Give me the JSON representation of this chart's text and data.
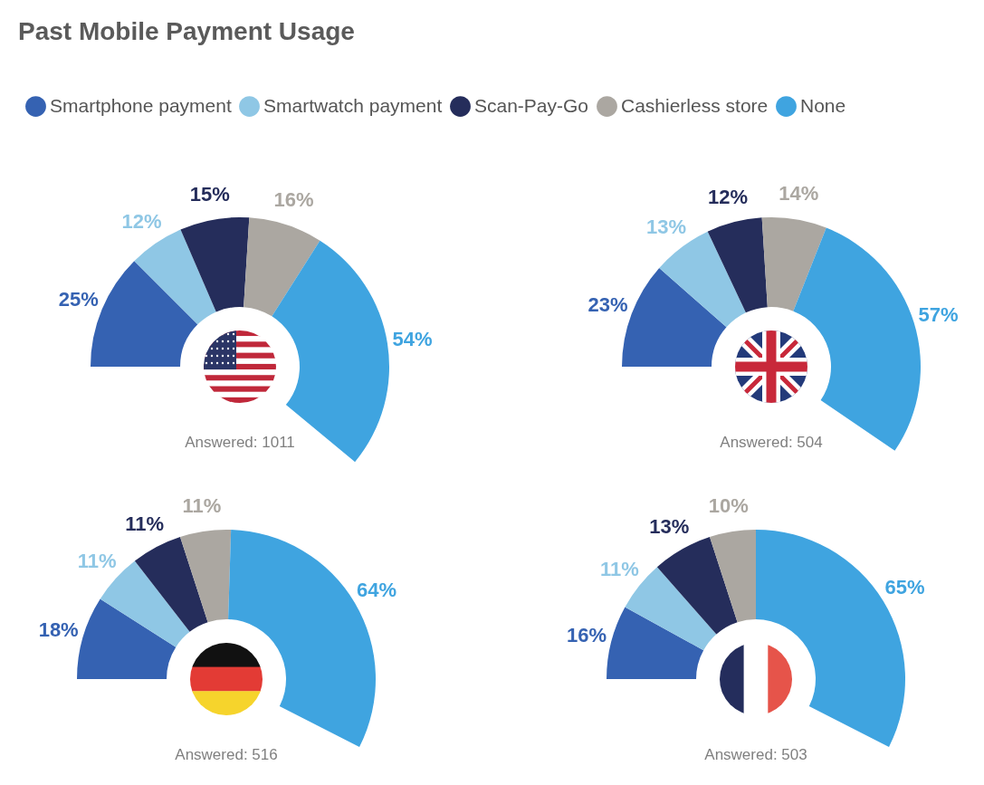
{
  "chart_data": [
    {
      "type": "donut",
      "title": "Past Mobile Payment Usage",
      "legend": "top",
      "categories": [
        "Smartphone payment",
        "Smartwatch payment",
        "Scan-Pay-Go",
        "Cashierless store",
        "None"
      ],
      "values": [
        25,
        12,
        15,
        16,
        54
      ],
      "value_labels": [
        "25%",
        "12%",
        "15%",
        "16%",
        "54%"
      ],
      "colors": [
        "#3562b2",
        "#8fc7e5",
        "#252d5b",
        "#aba7a1",
        "#3fa4e0"
      ],
      "annotations": [
        "Answered: 1011"
      ]
    },
    {
      "type": "donut",
      "categories": [
        null,
        null,
        null,
        null,
        null
      ],
      "values": [
        23,
        13,
        12,
        14,
        57
      ],
      "value_labels": [
        "23%",
        "13%",
        "12%",
        "14%",
        "57%"
      ],
      "colors": [
        "#3562b2",
        "#8fc7e5",
        "#252d5b",
        "#aba7a1",
        "#3fa4e0"
      ],
      "annotations": [
        "Answered: 504"
      ]
    },
    {
      "type": "donut",
      "categories": [
        null,
        null,
        null,
        null,
        null
      ],
      "values": [
        18,
        11,
        11,
        11,
        64
      ],
      "value_labels": [
        "18%",
        "11%",
        "11%",
        "11%",
        "64%"
      ],
      "colors": [
        "#3562b2",
        "#8fc7e5",
        "#252d5b",
        "#aba7a1",
        "#3fa4e0"
      ],
      "annotations": [
        "Answered: 516"
      ]
    },
    {
      "type": "donut",
      "categories": [
        null,
        null,
        null,
        null,
        null
      ],
      "values": [
        16,
        11,
        13,
        10,
        65
      ],
      "value_labels": [
        "16%",
        "11%",
        "13%",
        "10%",
        "65%"
      ],
      "colors": [
        "#3562b2",
        "#8fc7e5",
        "#252d5b",
        "#aba7a1",
        "#3fa4e0"
      ],
      "annotations": [
        "Answered: 503"
      ]
    }
  ]
}
